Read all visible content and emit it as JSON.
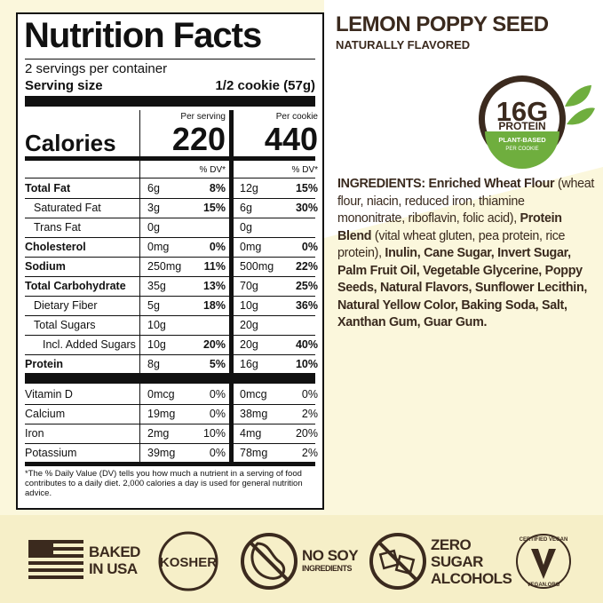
{
  "label": {
    "title": "Nutrition Facts",
    "servings": "2 servings per container",
    "serving_size_label": "Serving size",
    "serving_size": "1/2 cookie (57g)",
    "columns": [
      "Per serving",
      "Per cookie"
    ],
    "calories_label": "Calories",
    "calories": [
      "220",
      "440"
    ],
    "dv_header": "% DV*",
    "nutrients": [
      {
        "name": "Total Fat",
        "cells": [
          [
            "6g",
            "8%"
          ],
          [
            "12g",
            "15%"
          ]
        ]
      },
      {
        "name": "Saturated Fat",
        "cells": [
          [
            "3g",
            "15%"
          ],
          [
            "6g",
            "30%"
          ]
        ]
      },
      {
        "name": "Trans Fat",
        "cells": [
          [
            "0g"
          ],
          [
            "0g"
          ]
        ]
      },
      {
        "name": "Cholesterol",
        "cells": [
          [
            "0mg",
            "0%"
          ],
          [
            "0mg",
            "0%"
          ]
        ]
      },
      {
        "name": "Sodium",
        "cells": [
          [
            "250mg",
            "11%"
          ],
          [
            "500mg",
            "22%"
          ]
        ]
      },
      {
        "name": "Total Carbohydrate",
        "cells": [
          [
            "35g",
            "13%"
          ],
          [
            "70g",
            "25%"
          ]
        ]
      },
      {
        "name": "Dietary Fiber",
        "cells": [
          [
            "5g",
            "18%"
          ],
          [
            "10g",
            "36%"
          ]
        ]
      },
      {
        "name": "Total Sugars",
        "cells": [
          [
            "10g"
          ],
          [
            "20g"
          ]
        ]
      },
      {
        "name": "Incl. Added Sugars",
        "cells": [
          [
            "10g",
            "20%"
          ],
          [
            "20g",
            "40%"
          ]
        ]
      },
      {
        "name": "Protein",
        "cells": [
          [
            "8g",
            "5%"
          ],
          [
            "16g",
            "10%"
          ]
        ]
      }
    ],
    "vitamins": [
      {
        "name": "Vitamin D",
        "cells": [
          [
            "0mcg",
            "0%"
          ],
          [
            "0mcg",
            "0%"
          ]
        ]
      },
      {
        "name": "Calcium",
        "cells": [
          [
            "19mg",
            "0%"
          ],
          [
            "38mg",
            "2%"
          ]
        ]
      },
      {
        "name": "Iron",
        "cells": [
          [
            "2mg",
            "10%"
          ],
          [
            "4mg",
            "20%"
          ]
        ]
      },
      {
        "name": "Potassium",
        "cells": [
          [
            "39mg",
            "0%"
          ],
          [
            "78mg",
            "2%"
          ]
        ]
      }
    ],
    "footnote": "*The % Daily Value (DV) tells you how much a nutrient in a serving of food contributes to a daily diet. 2,000 calories a day is used for general nutrition advice."
  },
  "product": {
    "name": "LEMON POPPY SEED",
    "subtitle": "NATURALLY FLAVORED"
  },
  "badge": {
    "amount": "16G",
    "label": "PROTEIN",
    "line1": "PLANT-BASED",
    "line2": "PER COOKIE"
  },
  "ingredients": [
    {
      "text": "INGREDIENTS: Enriched Wheat Flour",
      "bold": true
    },
    {
      "text": " (wheat flour, niacin, reduced iron, thiamine mononitrate, riboflavin, folic acid), ",
      "bold": false
    },
    {
      "text": "Protein Blend",
      "bold": true
    },
    {
      "text": " (vital wheat gluten, pea protein, rice protein), ",
      "bold": false
    },
    {
      "text": "Inulin, Cane Sugar, Invert Sugar, Palm Fruit Oil, Vegetable Glycerine, Poppy Seeds, Natural Flavors, Sunflower Lecithin, Natural Yellow Color, Baking Soda, Salt, Xanthan Gum, Guar Gum.",
      "bold": true
    }
  ],
  "features": [
    {
      "lines": [
        "BAKED",
        "IN USA"
      ]
    },
    {
      "lines": [
        "KOSHER"
      ]
    },
    {
      "lines": [
        "NO SOY",
        "INGREDIENTS"
      ]
    },
    {
      "lines": [
        "ZERO",
        "SUGAR",
        "ALCOHOLS"
      ]
    },
    {
      "lines": [
        "CERTIFIED VEGAN",
        "VEGAN.ORG"
      ]
    }
  ]
}
